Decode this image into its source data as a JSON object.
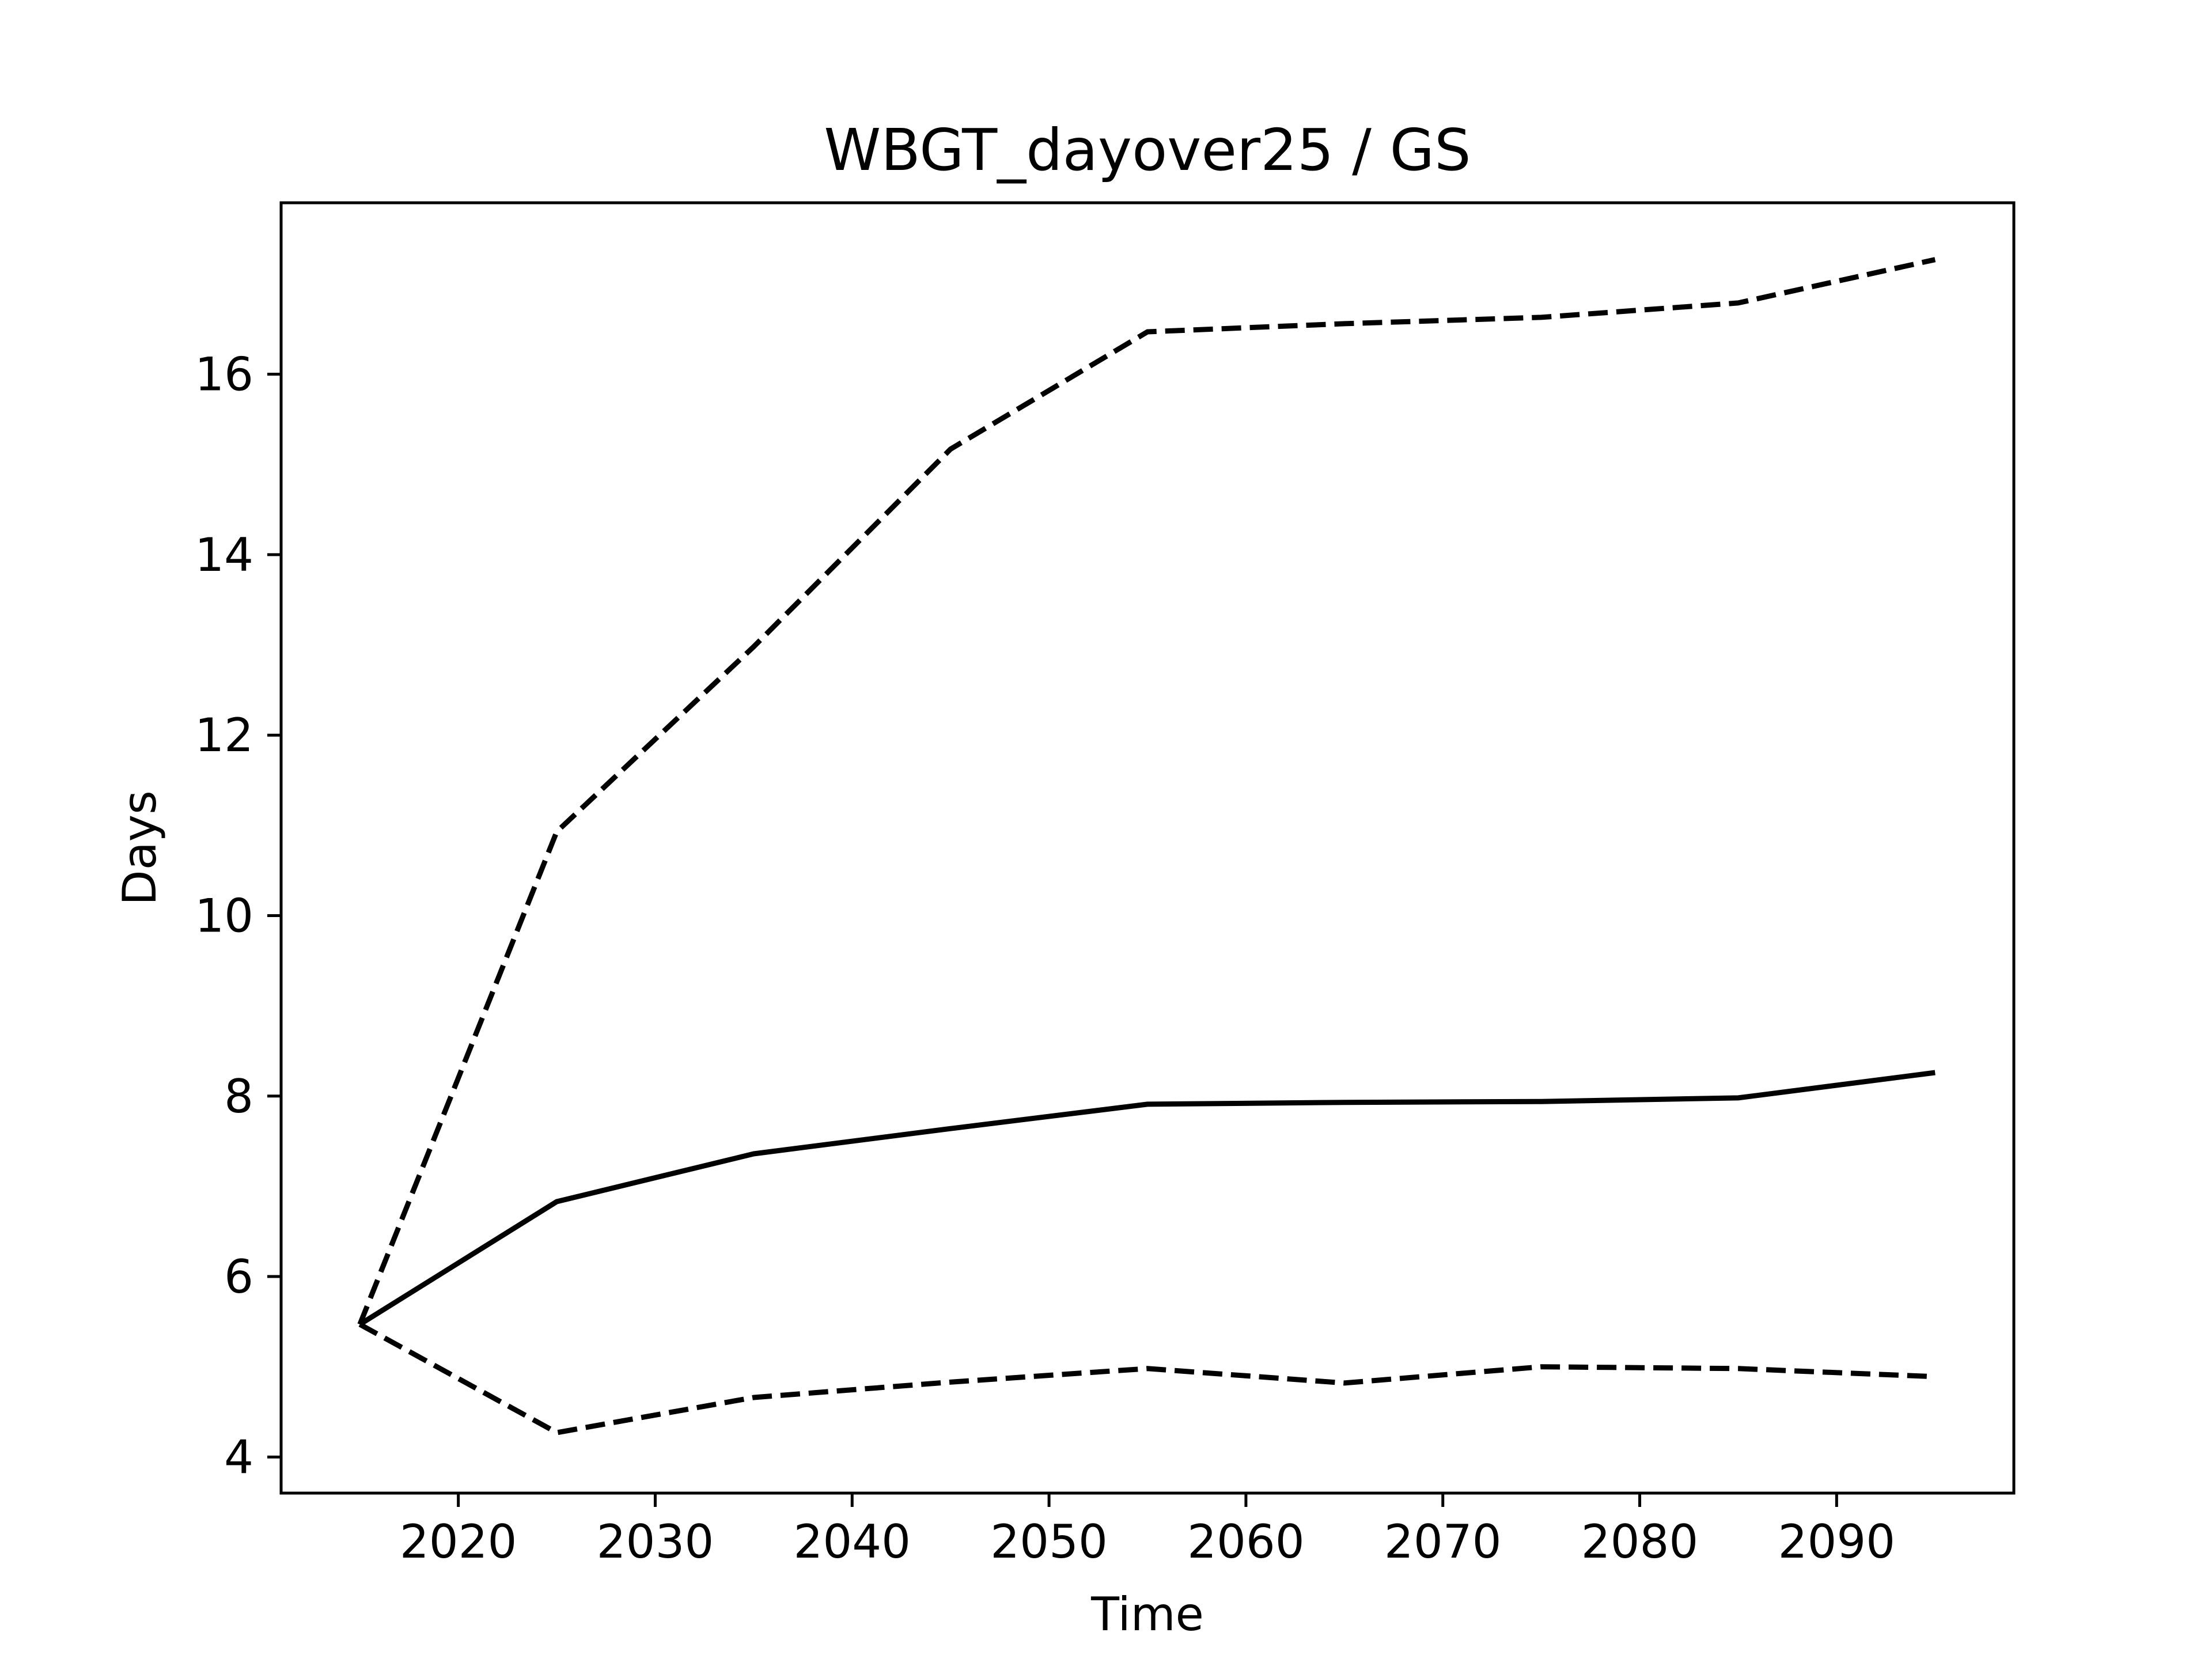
{
  "chart_data": {
    "type": "line",
    "title": "WBGT_dayover25 / GS",
    "xlabel": "Time",
    "ylabel": "Days",
    "xlim": [
      2011,
      2099
    ],
    "ylim": [
      3.6,
      17.9
    ],
    "xticks": [
      2020,
      2030,
      2040,
      2050,
      2060,
      2070,
      2080,
      2090
    ],
    "yticks": [
      4,
      6,
      8,
      10,
      12,
      14,
      16
    ],
    "grid": false,
    "legend": "none",
    "x": [
      2015,
      2025,
      2035,
      2045,
      2055,
      2065,
      2075,
      2085,
      2095
    ],
    "series": [
      {
        "style": "solid",
        "color": "#000000",
        "values": [
          5.47,
          6.83,
          7.36,
          7.64,
          7.91,
          7.93,
          7.94,
          7.98,
          8.26
        ]
      },
      {
        "style": "dashed",
        "color": "#000000",
        "values": [
          5.47,
          10.93,
          12.98,
          15.17,
          16.47,
          16.56,
          16.63,
          16.79,
          17.27
        ]
      },
      {
        "style": "dashed",
        "color": "#000000",
        "values": [
          5.47,
          4.27,
          4.66,
          4.83,
          4.98,
          4.82,
          5.0,
          4.98,
          4.89
        ]
      }
    ]
  }
}
